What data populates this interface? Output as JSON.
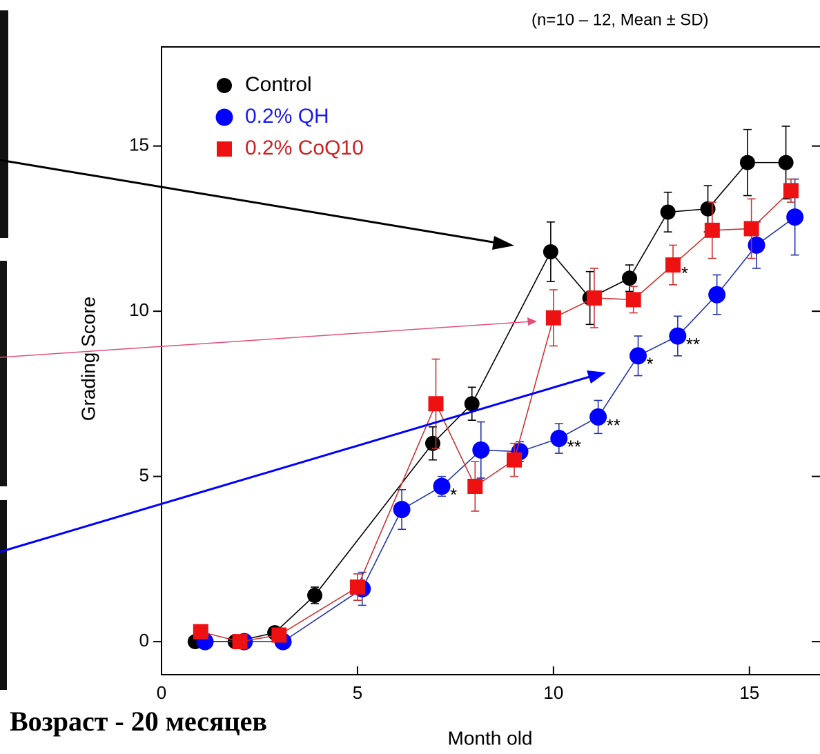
{
  "caption": "Возраст - 20 месяцев",
  "chart_data": {
    "type": "line",
    "subtitle": "(n=10 – 12, Mean  ±  SD)",
    "xlabel": "Month old",
    "ylabel": "Grading Score",
    "xlim": [
      0,
      16.8
    ],
    "ylim": [
      -1,
      18
    ],
    "xticks": [
      0,
      5,
      10,
      15
    ],
    "yticks": [
      0,
      5,
      10,
      15
    ],
    "series": [
      {
        "name": "Control",
        "color": "#000000",
        "marker": "circle",
        "x": [
          0.86,
          1.88,
          2.89,
          3.91,
          6.92,
          7.92,
          9.93,
          10.93,
          11.94,
          12.92,
          13.94,
          14.95,
          15.93
        ],
        "values": [
          0,
          0,
          0.27,
          1.4,
          6.0,
          7.2,
          11.8,
          10.4,
          11.0,
          13.0,
          13.1,
          14.5,
          14.5
        ],
        "errors": [
          0,
          0,
          0,
          0.25,
          0.5,
          0.5,
          0.9,
          0.8,
          0.4,
          0.6,
          0.7,
          1.0,
          1.1
        ]
      },
      {
        "name": "0.2% QH",
        "color": "#0000ff",
        "marker": "circle",
        "x": [
          1.11,
          2.11,
          3.1,
          5.12,
          6.13,
          7.15,
          8.15,
          9.14,
          10.14,
          11.14,
          12.16,
          13.17,
          14.17,
          15.18,
          16.16
        ],
        "values": [
          0,
          0,
          0,
          1.6,
          4.0,
          4.7,
          5.8,
          5.75,
          6.15,
          6.8,
          8.65,
          9.25,
          10.5,
          12.0,
          12.85
        ],
        "errors": [
          0,
          0,
          0,
          0.5,
          0.6,
          0.3,
          0.85,
          0.3,
          0.45,
          0.5,
          0.6,
          0.6,
          0.6,
          0.7,
          1.15
        ]
      },
      {
        "name": "0.2% CoQ10",
        "color": "#ee1111",
        "marker": "square",
        "x": [
          1.0,
          2.0,
          3.0,
          5.0,
          7.0,
          8.0,
          9.0,
          10.0,
          11.04,
          12.04,
          13.05,
          14.05,
          15.05,
          16.06
        ],
        "values": [
          0.3,
          0,
          0.2,
          1.65,
          7.2,
          4.7,
          5.5,
          9.8,
          10.4,
          10.35,
          11.4,
          12.45,
          12.5,
          13.65
        ],
        "errors": [
          0,
          0,
          0,
          0.4,
          1.35,
          0.75,
          0.5,
          0.85,
          0.9,
          0.4,
          0.6,
          0.85,
          0.9,
          0.35
        ]
      }
    ],
    "annotations": [
      {
        "text": "*",
        "x": 7.15,
        "y": 4.7
      },
      {
        "text": "**",
        "x": 10.14,
        "y": 6.15
      },
      {
        "text": "**",
        "x": 11.14,
        "y": 6.8
      },
      {
        "text": "*",
        "x": 12.16,
        "y": 8.65
      },
      {
        "text": "**",
        "x": 13.17,
        "y": 9.25
      },
      {
        "text": "*",
        "x": 13.05,
        "y": 11.4
      }
    ]
  }
}
